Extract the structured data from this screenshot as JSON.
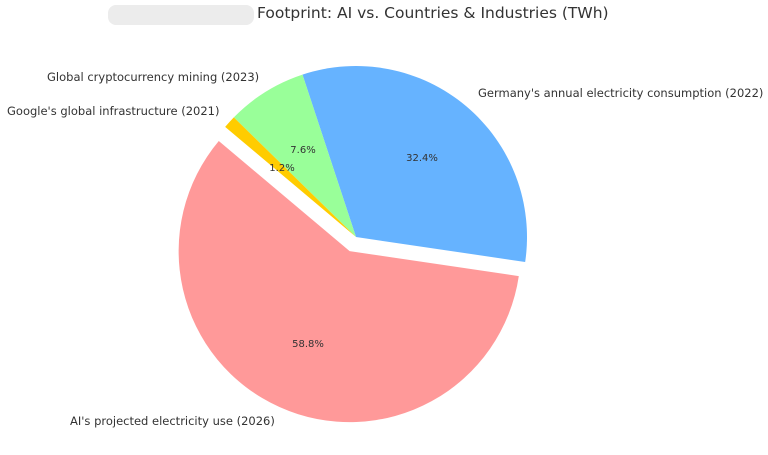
{
  "chart_data": {
    "type": "pie",
    "title": "Footprint: AI vs. Countries & Industries (TWh)",
    "title_prefix_redacted": true,
    "slices": [
      {
        "label": "Germany's annual electricity consumption (2022)",
        "percent": 32.4,
        "pct_label": "32.4%",
        "color": "#66b3ff",
        "exploded": false
      },
      {
        "label": "Global cryptocurrency mining (2023)",
        "percent": 7.6,
        "pct_label": "7.6%",
        "color": "#99ff99",
        "exploded": false
      },
      {
        "label": "Google's global infrastructure (2021)",
        "percent": 1.2,
        "pct_label": "1.2%",
        "color": "#ffcc00",
        "exploded": false
      },
      {
        "label": "AI's projected electricity use (2026)",
        "percent": 58.8,
        "pct_label": "58.8%",
        "color": "#ff9999",
        "exploded": true
      }
    ],
    "categories": [
      "Germany's annual electricity consumption (2022)",
      "Global cryptocurrency mining (2023)",
      "Google's global infrastructure (2021)",
      "AI's projected electricity use (2026)"
    ],
    "values": [
      32.4,
      7.6,
      1.2,
      58.8
    ],
    "legend": "none (labels placed beside slices)"
  },
  "title": {
    "text": "Footprint: AI vs. Countries & Industries (TWh)"
  }
}
